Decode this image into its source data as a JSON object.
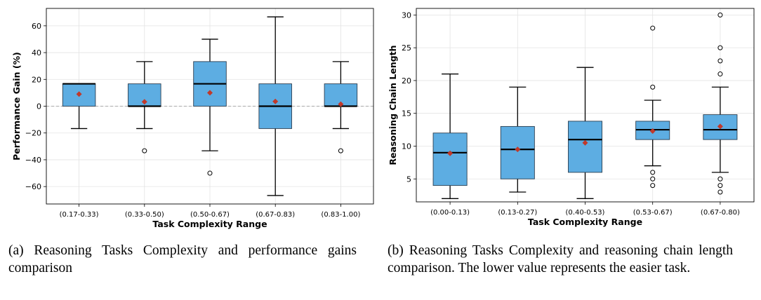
{
  "chart_data": [
    {
      "type": "box",
      "xlabel": "Task Complexity Range",
      "ylabel": "Performance Gain (%)",
      "ylim": [
        -73,
        73
      ],
      "yticks": [
        -60,
        -40,
        -20,
        0,
        20,
        40,
        60
      ],
      "ytick_labels": [
        "−60",
        "−40",
        "−20",
        "0",
        "20",
        "40",
        "60"
      ],
      "reference_line": 0,
      "grid": true,
      "box_color": "#5dade2",
      "median_color": "#000000",
      "mean_marker_color": "#c0392b",
      "categories": [
        "(0.17-0.33)",
        "(0.33-0.50)",
        "(0.50-0.67)",
        "(0.67-0.83)",
        "(0.83-1.00)"
      ],
      "boxes": [
        {
          "whislo": -16.7,
          "q1": 0,
          "med": 16.7,
          "q3": 16.7,
          "whishi": 16.7,
          "mean": 9,
          "fliers": []
        },
        {
          "whislo": -16.7,
          "q1": 0,
          "med": 0,
          "q3": 16.7,
          "whishi": 33.3,
          "mean": 3.3,
          "fliers": [
            -33.3
          ]
        },
        {
          "whislo": -33.3,
          "q1": 0,
          "med": 16.7,
          "q3": 33.3,
          "whishi": 50,
          "mean": 10,
          "fliers": [
            -50
          ]
        },
        {
          "whislo": -66.7,
          "q1": -16.7,
          "med": 0,
          "q3": 16.7,
          "whishi": 66.7,
          "mean": 3.5,
          "fliers": []
        },
        {
          "whislo": -16.7,
          "q1": 0,
          "med": 0,
          "q3": 16.7,
          "whishi": 33.3,
          "mean": 1.5,
          "fliers": [
            -33.3
          ]
        }
      ]
    },
    {
      "type": "box",
      "xlabel": "Task Complexity Range",
      "ylabel": "Reasoning Chain Length",
      "ylim": [
        1.5,
        31
      ],
      "yticks": [
        5,
        10,
        15,
        20,
        25,
        30
      ],
      "ytick_labels": [
        "5",
        "10",
        "15",
        "20",
        "25",
        "30"
      ],
      "grid": true,
      "box_color": "#5dade2",
      "median_color": "#000000",
      "mean_marker_color": "#c0392b",
      "categories": [
        "(0.00-0.13)",
        "(0.13-0.27)",
        "(0.40-0.53)",
        "(0.53-0.67)",
        "(0.67-0.80)"
      ],
      "boxes": [
        {
          "whislo": 2,
          "q1": 4,
          "med": 9,
          "q3": 12,
          "whishi": 21,
          "mean": 8.9,
          "fliers": []
        },
        {
          "whislo": 3,
          "q1": 5,
          "med": 9.5,
          "q3": 13,
          "whishi": 19,
          "mean": 9.5,
          "fliers": []
        },
        {
          "whislo": 2,
          "q1": 6,
          "med": 11,
          "q3": 13.8,
          "whishi": 22,
          "mean": 10.5,
          "fliers": []
        },
        {
          "whislo": 7,
          "q1": 11,
          "med": 12.5,
          "q3": 13.8,
          "whishi": 17,
          "mean": 12.3,
          "fliers": [
            28,
            19,
            6,
            5,
            4
          ]
        },
        {
          "whislo": 6,
          "q1": 11,
          "med": 12.5,
          "q3": 14.8,
          "whishi": 19,
          "mean": 13,
          "fliers": [
            30,
            25,
            23,
            21,
            5,
            4,
            3
          ]
        }
      ]
    }
  ],
  "captions": {
    "a": "(a) Reasoning Tasks Complexity and performance gains comparison",
    "b": "(b) Reasoning Tasks Complexity and reasoning chain length comparison. The lower value represents the easier task."
  }
}
